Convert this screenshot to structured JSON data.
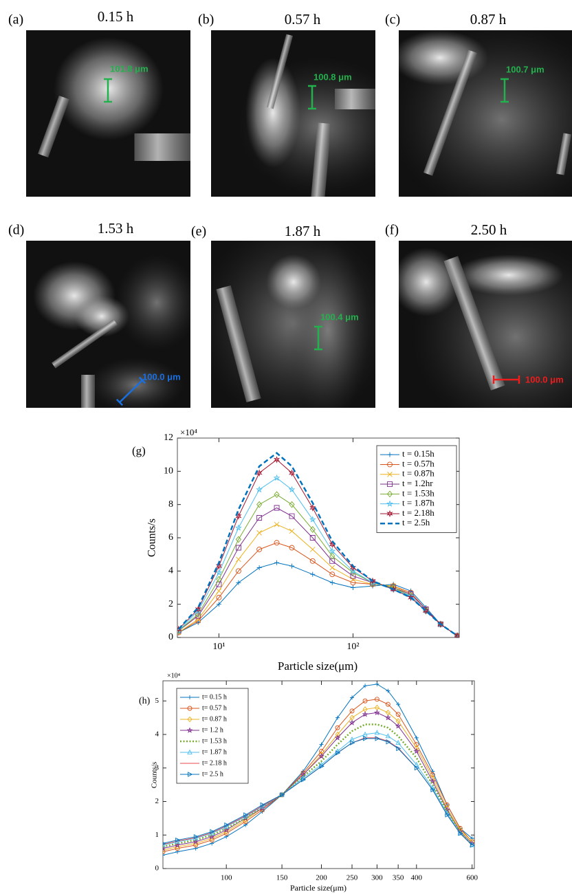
{
  "panels": [
    {
      "label": "(a)",
      "time": "0.15 h",
      "scale": "101.8 μm",
      "scale_color": "#22b14c"
    },
    {
      "label": "(b)",
      "time": "0.57 h",
      "scale": "100.8 μm",
      "scale_color": "#22b14c"
    },
    {
      "label": "(c)",
      "time": "0.87 h",
      "scale": "100.7 μm",
      "scale_color": "#22b14c"
    },
    {
      "label": "(d)",
      "time": "1.53 h",
      "scale": "100.0 μm",
      "scale_color": "#1a6fe0"
    },
    {
      "label": "(e)",
      "time": "1.87 h",
      "scale": "100.4 μm",
      "scale_color": "#22b14c"
    },
    {
      "label": "(f)",
      "time": "2.50 h",
      "scale": "100.0 μm",
      "scale_color": "#ee1c1c"
    }
  ],
  "chart_data": [
    {
      "type": "line",
      "panel_label": "(g)",
      "y_exponent_label": "×10⁴",
      "x_label": "Particle size(μm)",
      "y_label": "Counts/s",
      "x_scale": "log",
      "legend": "upper right",
      "xlim": [
        4.9,
        620
      ],
      "xticks": [
        {
          "value": 10,
          "label": "10¹"
        },
        {
          "value": 100,
          "label": "10²"
        }
      ],
      "ylim": [
        0,
        12
      ],
      "yticks": [
        0,
        2,
        4,
        6,
        8,
        10,
        12
      ],
      "x": [
        5,
        7,
        10,
        14,
        20,
        27,
        35,
        50,
        70,
        100,
        140,
        200,
        270,
        350,
        450,
        600
      ],
      "series": [
        {
          "name": "t = 0.15h",
          "color": "#0072bd",
          "marker": "plus",
          "dash": "solid",
          "values": [
            0.3,
            0.9,
            2.0,
            3.3,
            4.2,
            4.5,
            4.3,
            3.8,
            3.3,
            3.0,
            3.1,
            3.2,
            2.8,
            1.8,
            0.8,
            0.1
          ]
        },
        {
          "name": "t = 0.57h",
          "color": "#d95319",
          "marker": "circle",
          "dash": "solid",
          "values": [
            0.3,
            1.0,
            2.4,
            4.0,
            5.3,
            5.7,
            5.4,
            4.6,
            3.8,
            3.3,
            3.2,
            3.1,
            2.7,
            1.7,
            0.8,
            0.1
          ]
        },
        {
          "name": "t = 0.87h",
          "color": "#edb120",
          "marker": "x",
          "dash": "solid",
          "values": [
            0.3,
            1.1,
            2.8,
            4.7,
            6.3,
            6.8,
            6.4,
            5.3,
            4.2,
            3.5,
            3.2,
            3.1,
            2.6,
            1.7,
            0.8,
            0.1
          ]
        },
        {
          "name": "t = 1.2hr",
          "color": "#7e2f8e",
          "marker": "square",
          "dash": "solid",
          "values": [
            0.4,
            1.3,
            3.2,
            5.4,
            7.2,
            7.8,
            7.3,
            6.0,
            4.6,
            3.7,
            3.3,
            3.0,
            2.6,
            1.7,
            0.8,
            0.1
          ]
        },
        {
          "name": "t = 1.53h",
          "color": "#77ac30",
          "marker": "diamond",
          "dash": "solid",
          "values": [
            0.4,
            1.4,
            3.5,
            5.9,
            8.0,
            8.6,
            8.0,
            6.5,
            4.9,
            3.9,
            3.3,
            3.0,
            2.5,
            1.6,
            0.8,
            0.1
          ]
        },
        {
          "name": "t = 1.87h",
          "color": "#4dbeee",
          "marker": "star",
          "dash": "solid",
          "values": [
            0.4,
            1.6,
            3.9,
            6.6,
            8.9,
            9.6,
            8.9,
            7.1,
            5.2,
            4.0,
            3.3,
            2.9,
            2.5,
            1.6,
            0.8,
            0.1
          ]
        },
        {
          "name": "t = 2.18h",
          "color": "#a2142f",
          "marker": "hexagram",
          "dash": "solid",
          "values": [
            0.5,
            1.7,
            4.3,
            7.3,
            9.9,
            10.7,
            9.9,
            7.8,
            5.6,
            4.2,
            3.4,
            2.9,
            2.4,
            1.6,
            0.8,
            0.1
          ]
        },
        {
          "name": "t = 2.5h",
          "color": "#0072bd",
          "marker": "none",
          "dash": "dashed",
          "values": [
            0.5,
            1.8,
            4.5,
            7.7,
            10.3,
            11.1,
            10.3,
            8.1,
            5.8,
            4.3,
            3.4,
            2.9,
            2.4,
            1.6,
            0.8,
            0.1
          ]
        }
      ]
    },
    {
      "type": "line",
      "panel_label": "(h)",
      "y_exponent_label": "×10⁴",
      "x_label": "Particle size(μm)",
      "y_label": "Counts/s",
      "x_scale": "log",
      "legend": "upper left",
      "xlim": [
        63,
        610
      ],
      "xticks": [
        100,
        150,
        200,
        250,
        300,
        350,
        400,
        600
      ],
      "ylim": [
        0,
        5.6
      ],
      "yticks": [
        0,
        1,
        2,
        3,
        4,
        5
      ],
      "x": [
        63,
        70,
        80,
        90,
        100,
        115,
        130,
        150,
        175,
        200,
        225,
        250,
        275,
        300,
        325,
        350,
        400,
        450,
        500,
        550,
        600
      ],
      "series": [
        {
          "name": "t= 0.15 h",
          "color": "#0072bd",
          "marker": "plus",
          "dash": "solid",
          "values": [
            0.4,
            0.5,
            0.6,
            0.75,
            0.95,
            1.3,
            1.7,
            2.2,
            2.9,
            3.7,
            4.5,
            5.1,
            5.45,
            5.5,
            5.3,
            4.9,
            3.9,
            2.9,
            1.9,
            1.2,
            0.9
          ]
        },
        {
          "name": "t= 0.57 h",
          "color": "#d95319",
          "marker": "circle",
          "dash": "solid",
          "values": [
            0.5,
            0.6,
            0.7,
            0.85,
            1.05,
            1.4,
            1.75,
            2.2,
            2.85,
            3.5,
            4.2,
            4.7,
            5.0,
            5.05,
            4.9,
            4.6,
            3.7,
            2.8,
            1.9,
            1.2,
            0.8
          ]
        },
        {
          "name": "t= 0.87 h",
          "color": "#edb120",
          "marker": "diamond",
          "dash": "solid",
          "values": [
            0.55,
            0.65,
            0.75,
            0.9,
            1.1,
            1.45,
            1.8,
            2.2,
            2.8,
            3.4,
            4.0,
            4.5,
            4.75,
            4.8,
            4.65,
            4.4,
            3.6,
            2.7,
            1.8,
            1.15,
            0.8
          ]
        },
        {
          "name": "t= 1.2 h",
          "color": "#7e2f8e",
          "marker": "star",
          "dash": "solid",
          "values": [
            0.6,
            0.7,
            0.8,
            0.95,
            1.15,
            1.5,
            1.8,
            2.2,
            2.8,
            3.35,
            3.9,
            4.35,
            4.6,
            4.65,
            4.5,
            4.25,
            3.5,
            2.6,
            1.75,
            1.1,
            0.75
          ]
        },
        {
          "name": "t= 1.53 h",
          "color": "#77ac30",
          "marker": "none",
          "dash": "dotted",
          "values": [
            0.65,
            0.75,
            0.85,
            1.0,
            1.2,
            1.5,
            1.85,
            2.2,
            2.75,
            3.2,
            3.7,
            4.1,
            4.3,
            4.3,
            4.2,
            3.95,
            3.3,
            2.5,
            1.7,
            1.1,
            0.7
          ]
        },
        {
          "name": "t= 1.87 h",
          "color": "#4dbeee",
          "marker": "triangle-up",
          "dash": "solid",
          "values": [
            0.7,
            0.8,
            0.9,
            1.05,
            1.25,
            1.55,
            1.85,
            2.2,
            2.7,
            3.1,
            3.5,
            3.85,
            4.0,
            4.05,
            3.95,
            3.75,
            3.1,
            2.4,
            1.65,
            1.05,
            0.7
          ]
        },
        {
          "name": "t= 2.18 h",
          "color": "#e8474f",
          "marker": "none",
          "dash": "solid",
          "values": [
            0.72,
            0.82,
            0.92,
            1.07,
            1.27,
            1.57,
            1.87,
            2.2,
            2.65,
            3.05,
            3.45,
            3.75,
            3.9,
            3.9,
            3.8,
            3.6,
            3.0,
            2.35,
            1.6,
            1.05,
            0.7
          ]
        },
        {
          "name": "t= 2.5 h",
          "color": "#0072bd",
          "marker": "triangle-right",
          "dash": "solid",
          "values": [
            0.75,
            0.85,
            0.95,
            1.1,
            1.3,
            1.6,
            1.9,
            2.2,
            2.65,
            3.05,
            3.45,
            3.75,
            3.88,
            3.88,
            3.78,
            3.58,
            3.0,
            2.35,
            1.6,
            1.05,
            0.7
          ]
        }
      ]
    }
  ]
}
